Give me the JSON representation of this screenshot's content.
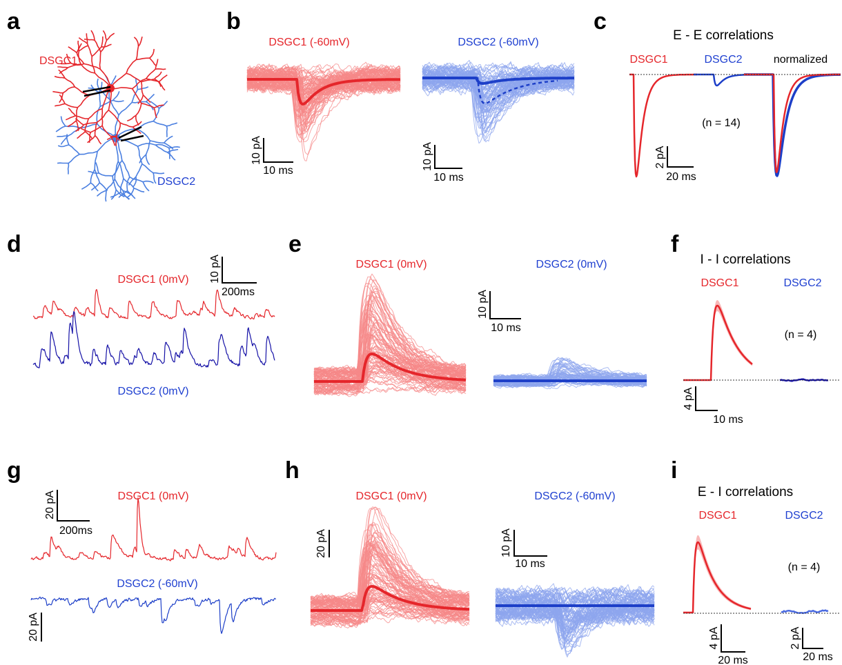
{
  "panels": {
    "a": {
      "letter": "a",
      "labels": [
        "DSGC1",
        "DSGC2"
      ]
    },
    "b": {
      "letter": "b",
      "titles": [
        "DSGC1 (-60mV)",
        "DSGC2 (-60mV)"
      ],
      "scale_bars": [
        {
          "y": "10 pA",
          "x": "10 ms"
        },
        {
          "y": "10 pA",
          "x": "10 ms"
        }
      ]
    },
    "c": {
      "letter": "c",
      "title": "E - E correlations",
      "columns": [
        "DSGC1",
        "DSGC2",
        "normalized"
      ],
      "n": "(n = 14)",
      "scale_bar": {
        "y": "2 pA",
        "x": "20 ms"
      }
    },
    "d": {
      "letter": "d",
      "labels": [
        "DSGC1 (0mV)",
        "DSGC2 (0mV)"
      ],
      "scale_bar": {
        "y": "10 pA",
        "x": "200ms"
      }
    },
    "e": {
      "letter": "e",
      "titles": [
        "DSGC1 (0mV)",
        "DSGC2 (0mV)"
      ],
      "scale_bar": {
        "y": "10 pA",
        "x": "10 ms"
      }
    },
    "f": {
      "letter": "f",
      "title": "I - I correlations",
      "columns": [
        "DSGC1",
        "DSGC2"
      ],
      "n": "(n = 4)",
      "scale_bar": {
        "y": "4 pA",
        "x": "10 ms"
      }
    },
    "g": {
      "letter": "g",
      "labels": [
        "DSGC1 (0mV)",
        "DSGC2 (-60mV)"
      ],
      "scale_bars": [
        {
          "y": "20 pA",
          "x": "200ms"
        },
        {
          "y": "20 pA"
        }
      ]
    },
    "h": {
      "letter": "h",
      "titles": [
        "DSGC1 (0mV)",
        "DSGC2 (-60mV)"
      ],
      "scale_bars": [
        {
          "y": "20 pA"
        },
        {
          "y": "10 pA",
          "x": "10 ms"
        }
      ]
    },
    "i": {
      "letter": "i",
      "title": "E - I correlations",
      "columns": [
        "DSGC1",
        "DSGC2"
      ],
      "n": "(n = 4)",
      "scale_bars": [
        {
          "y": "4 pA",
          "x": "20 ms"
        },
        {
          "y": "2 pA",
          "x": "20 ms"
        }
      ]
    }
  }
}
